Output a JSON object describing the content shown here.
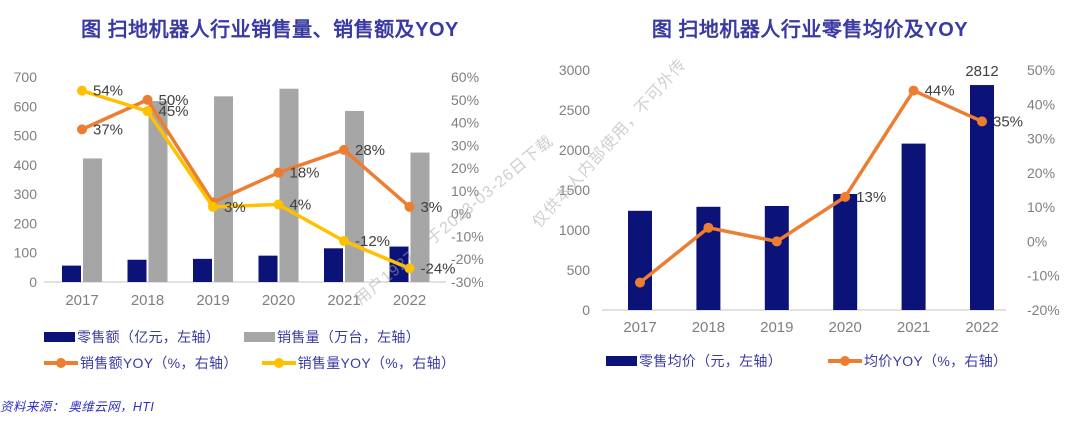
{
  "page": {
    "source_note": "资料来源： 奥维云网，HTI",
    "watermarks": [
      "用户192747于2023-03-26日下载",
      "仅供本人内部使用，不可外传"
    ]
  },
  "colors": {
    "navy": "#0c1378",
    "gray": "#a6a6a6",
    "orange": "#ed7d31",
    "yellow": "#ffc000",
    "title_blue": "#3a3aa4",
    "source_blue": "#2f2fc4",
    "axis_gray": "#7f7f7f",
    "label_dark": "#404040",
    "baseline_gray": "#d9d9d9"
  },
  "chart_data": [
    {
      "type": "bar+line",
      "title": "图 扫地机器人行业销售量、销售额及YOY",
      "categories": [
        "2017",
        "2018",
        "2019",
        "2020",
        "2021",
        "2022"
      ],
      "left_axis": {
        "min": 0,
        "max": 700,
        "step": 100,
        "percent": false
      },
      "right_axis": {
        "min": -30,
        "max": 60,
        "step": 10,
        "percent": true
      },
      "grid": false,
      "legend_position": "bottom",
      "bar_series": [
        {
          "name": "零售额（亿元，左轴）",
          "color": "navy",
          "values": [
            56,
            76,
            79,
            90,
            115,
            121
          ],
          "bar_labels": [
            null,
            null,
            null,
            null,
            null,
            null
          ]
        },
        {
          "name": "销售量（万台，左轴）",
          "color": "gray",
          "values": [
            422,
            618,
            634,
            660,
            584,
            442
          ],
          "bar_labels": [
            null,
            null,
            null,
            null,
            null,
            null
          ]
        }
      ],
      "line_series": [
        {
          "name": "销售额YOY（%，右轴）",
          "color": "orange",
          "values": [
            37,
            50,
            5,
            18,
            28,
            3
          ],
          "labels": [
            "37%",
            "50%",
            null,
            "18%",
            "28%",
            "3%"
          ]
        },
        {
          "name": "销售量YOY（%，右轴）",
          "color": "yellow",
          "values": [
            54,
            45,
            3,
            4,
            -12,
            -24
          ],
          "labels": [
            "54%",
            "45%",
            "3%",
            "4%",
            "-12%",
            "-24%"
          ]
        }
      ]
    },
    {
      "type": "bar+line",
      "title": "图 扫地机器人行业零售均价及YOY",
      "categories": [
        "2017",
        "2018",
        "2019",
        "2020",
        "2021",
        "2022"
      ],
      "left_axis": {
        "min": 0,
        "max": 3000,
        "step": 500,
        "percent": false
      },
      "right_axis": {
        "min": -20,
        "max": 50,
        "step": 10,
        "percent": true
      },
      "grid": false,
      "legend_position": "bottom",
      "bar_series": [
        {
          "name": "零售均价（元，左轴）",
          "color": "navy",
          "values": [
            1240,
            1290,
            1300,
            1450,
            2080,
            2812
          ],
          "bar_labels": [
            null,
            null,
            null,
            null,
            null,
            "2812"
          ]
        }
      ],
      "line_series": [
        {
          "name": "均价YOY（%，右轴）",
          "color": "orange",
          "values": [
            -12,
            4,
            0,
            13,
            44,
            35
          ],
          "labels": [
            null,
            null,
            null,
            "13%",
            "44%",
            "35%"
          ]
        }
      ]
    }
  ]
}
